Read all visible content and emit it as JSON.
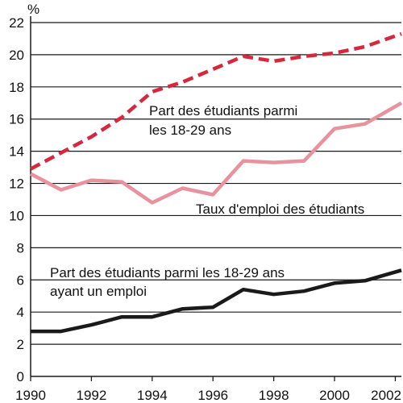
{
  "chart_data": {
    "type": "line",
    "y_unit_label": "%",
    "ylim": [
      0,
      22
    ],
    "xlim": [
      1990,
      2002.2
    ],
    "y_ticks": [
      0,
      2,
      4,
      6,
      8,
      10,
      12,
      14,
      16,
      18,
      20,
      22
    ],
    "x_ticks": [
      1990,
      1992,
      1994,
      1996,
      1998,
      2000,
      2002
    ],
    "grid": "horizontal",
    "x": [
      1990,
      1991,
      1992,
      1993,
      1994,
      1995,
      1996,
      1997,
      1998,
      1999,
      2000,
      2001,
      2002.2
    ],
    "series": [
      {
        "id": "share",
        "color": "#d6283c",
        "style": "dashed",
        "values": [
          12.9,
          13.9,
          14.9,
          16.1,
          17.7,
          18.3,
          19.1,
          19.9,
          19.6,
          19.9,
          20.1,
          20.5,
          21.3
        ],
        "label_lines": [
          "Part des étudiants parmi",
          "les 18-29 ans"
        ]
      },
      {
        "id": "employment",
        "color": "#e8929e",
        "style": "solid",
        "values": [
          12.6,
          11.6,
          12.2,
          12.1,
          10.8,
          11.7,
          11.3,
          13.4,
          13.3,
          13.4,
          15.4,
          15.7,
          17.0
        ],
        "label_lines": [
          "Taux d'emploi des étudiants"
        ]
      },
      {
        "id": "employed_share",
        "color": "#1a1a1a",
        "style": "solid",
        "values": [
          2.8,
          2.8,
          3.2,
          3.7,
          3.7,
          4.2,
          4.3,
          5.4,
          5.1,
          5.3,
          5.8,
          5.95,
          6.6
        ],
        "label_lines": [
          "Part des étudiants parmi les 18-29 ans",
          "ayant un emploi"
        ]
      }
    ]
  }
}
